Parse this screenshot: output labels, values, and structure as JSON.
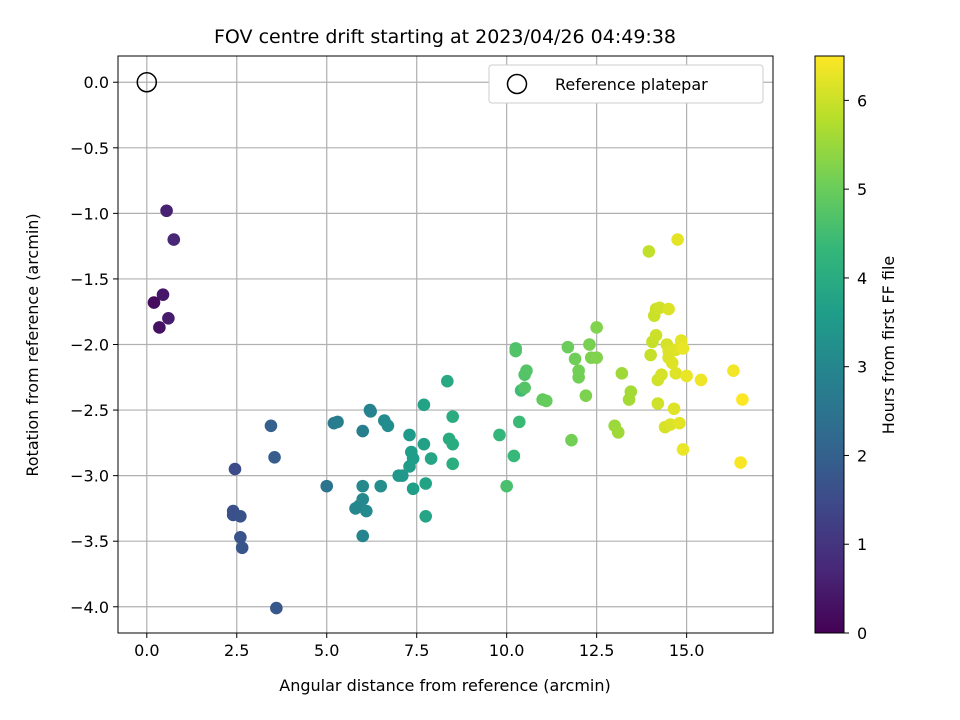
{
  "chart_data": {
    "type": "scatter",
    "title": "FOV centre drift starting at 2023/04/26 04:49:38",
    "xlabel": "Angular distance from reference (arcmin)",
    "ylabel": "Rotation from reference (arcmin)",
    "xlim": [
      -0.8,
      17.4
    ],
    "ylim": [
      -4.2,
      0.2
    ],
    "xticks": [
      0.0,
      2.5,
      5.0,
      7.5,
      10.0,
      12.5,
      15.0
    ],
    "xtick_labels": [
      "0.0",
      "2.5",
      "5.0",
      "7.5",
      "10.0",
      "12.5",
      "15.0"
    ],
    "yticks": [
      0.0,
      -0.5,
      -1.0,
      -1.5,
      -2.0,
      -2.5,
      -3.0,
      -3.5,
      -4.0
    ],
    "ytick_labels": [
      "0.0",
      "−0.5",
      "−1.0",
      "−1.5",
      "−2.0",
      "−2.5",
      "−3.0",
      "−3.5",
      "−4.0"
    ],
    "grid": true,
    "colormap": "viridis",
    "colorbar": {
      "label": "Hours from first FF file",
      "range": [
        0,
        6.5
      ],
      "ticks": [
        0,
        1,
        2,
        3,
        4,
        5,
        6
      ],
      "tick_labels": [
        "0",
        "1",
        "2",
        "3",
        "4",
        "5",
        "6"
      ]
    },
    "legend": {
      "label": "Reference platepar",
      "placement": "top-right"
    },
    "reference_point": {
      "x": 0.0,
      "y": 0.0
    },
    "series": [
      {
        "points": [
          [
            0.55,
            -0.98,
            0.6
          ],
          [
            0.75,
            -1.2,
            0.7
          ],
          [
            0.45,
            -1.62,
            0.4
          ],
          [
            0.2,
            -1.68,
            0.2
          ],
          [
            0.6,
            -1.8,
            0.5
          ],
          [
            0.35,
            -1.87,
            0.3
          ],
          [
            2.45,
            -2.95,
            1.5
          ],
          [
            2.4,
            -3.27,
            1.6
          ],
          [
            2.4,
            -3.3,
            1.6
          ],
          [
            2.6,
            -3.31,
            1.65
          ],
          [
            2.6,
            -3.47,
            1.7
          ],
          [
            2.65,
            -3.55,
            1.75
          ],
          [
            3.45,
            -2.62,
            2.0
          ],
          [
            3.55,
            -2.86,
            1.9
          ],
          [
            3.6,
            -4.01,
            1.8
          ],
          [
            5.0,
            -3.08,
            2.5
          ],
          [
            5.2,
            -2.6,
            2.7
          ],
          [
            5.3,
            -2.59,
            2.75
          ],
          [
            6.0,
            -2.66,
            2.8
          ],
          [
            6.2,
            -2.5,
            2.9
          ],
          [
            6.22,
            -2.51,
            2.9
          ],
          [
            6.6,
            -2.58,
            3.1
          ],
          [
            6.7,
            -2.62,
            3.15
          ],
          [
            5.8,
            -3.25,
            3.0
          ],
          [
            5.9,
            -3.23,
            3.0
          ],
          [
            6.0,
            -3.08,
            3.05
          ],
          [
            6.0,
            -3.18,
            3.05
          ],
          [
            6.1,
            -3.27,
            3.1
          ],
          [
            6.5,
            -3.08,
            3.2
          ],
          [
            6.0,
            -3.46,
            2.95
          ],
          [
            7.0,
            -3.0,
            3.4
          ],
          [
            7.1,
            -3.0,
            3.45
          ],
          [
            7.3,
            -2.69,
            3.5
          ],
          [
            7.3,
            -2.93,
            3.55
          ],
          [
            7.35,
            -2.82,
            3.6
          ],
          [
            7.4,
            -2.87,
            3.6
          ],
          [
            7.4,
            -3.1,
            3.65
          ],
          [
            7.7,
            -2.76,
            3.7
          ],
          [
            7.7,
            -2.46,
            3.75
          ],
          [
            7.75,
            -3.06,
            3.75
          ],
          [
            7.75,
            -3.31,
            3.8
          ],
          [
            7.9,
            -2.87,
            3.8
          ],
          [
            8.35,
            -2.28,
            3.9
          ],
          [
            8.4,
            -2.72,
            3.95
          ],
          [
            8.5,
            -2.55,
            4.0
          ],
          [
            8.5,
            -2.76,
            4.0
          ],
          [
            8.5,
            -2.91,
            4.05
          ],
          [
            9.8,
            -2.69,
            4.3
          ],
          [
            10.0,
            -3.08,
            4.6
          ],
          [
            10.2,
            -2.85,
            4.35
          ],
          [
            10.25,
            -2.03,
            4.65
          ],
          [
            10.25,
            -2.05,
            4.7
          ],
          [
            10.35,
            -2.59,
            4.4
          ],
          [
            10.4,
            -2.35,
            4.45
          ],
          [
            10.5,
            -2.23,
            4.7
          ],
          [
            10.5,
            -2.33,
            4.75
          ],
          [
            10.55,
            -2.2,
            4.75
          ],
          [
            11.0,
            -2.42,
            4.9
          ],
          [
            11.1,
            -2.43,
            4.95
          ],
          [
            11.7,
            -2.02,
            5.0
          ],
          [
            11.8,
            -2.73,
            5.1
          ],
          [
            11.9,
            -2.11,
            5.05
          ],
          [
            12.0,
            -2.2,
            5.1
          ],
          [
            12.0,
            -2.25,
            5.1
          ],
          [
            12.2,
            -2.39,
            5.2
          ],
          [
            12.3,
            -2.0,
            5.15
          ],
          [
            12.35,
            -2.1,
            5.2
          ],
          [
            12.5,
            -1.87,
            5.25
          ],
          [
            12.5,
            -2.1,
            5.25
          ],
          [
            13.0,
            -2.62,
            5.5
          ],
          [
            13.1,
            -2.67,
            5.55
          ],
          [
            13.2,
            -2.22,
            5.55
          ],
          [
            13.4,
            -2.42,
            5.6
          ],
          [
            13.45,
            -2.36,
            5.6
          ],
          [
            13.95,
            -1.29,
            5.9
          ],
          [
            14.0,
            -2.08,
            5.95
          ],
          [
            14.05,
            -1.98,
            5.95
          ],
          [
            14.1,
            -1.78,
            6.0
          ],
          [
            14.15,
            -1.73,
            6.0
          ],
          [
            14.15,
            -1.93,
            6.0
          ],
          [
            14.2,
            -2.27,
            6.05
          ],
          [
            14.25,
            -1.72,
            6.05
          ],
          [
            14.2,
            -2.45,
            6.05
          ],
          [
            14.3,
            -2.23,
            6.1
          ],
          [
            14.4,
            -2.63,
            6.1
          ],
          [
            14.45,
            -2.0,
            6.1
          ],
          [
            14.5,
            -1.73,
            6.15
          ],
          [
            14.5,
            -2.05,
            6.15
          ],
          [
            14.5,
            -2.1,
            6.15
          ],
          [
            14.55,
            -2.61,
            6.15
          ],
          [
            14.6,
            -2.14,
            6.2
          ],
          [
            14.65,
            -2.49,
            6.2
          ],
          [
            14.7,
            -2.04,
            6.2
          ],
          [
            14.7,
            -2.22,
            6.2
          ],
          [
            14.75,
            -1.2,
            6.25
          ],
          [
            14.8,
            -2.6,
            6.25
          ],
          [
            14.85,
            -1.97,
            6.25
          ],
          [
            14.9,
            -2.03,
            6.3
          ],
          [
            14.9,
            -2.8,
            6.3
          ],
          [
            15.0,
            -2.24,
            6.3
          ],
          [
            15.4,
            -2.27,
            6.35
          ],
          [
            16.3,
            -2.2,
            6.4
          ],
          [
            16.5,
            -2.9,
            6.45
          ],
          [
            16.55,
            -2.42,
            6.5
          ]
        ]
      }
    ]
  }
}
